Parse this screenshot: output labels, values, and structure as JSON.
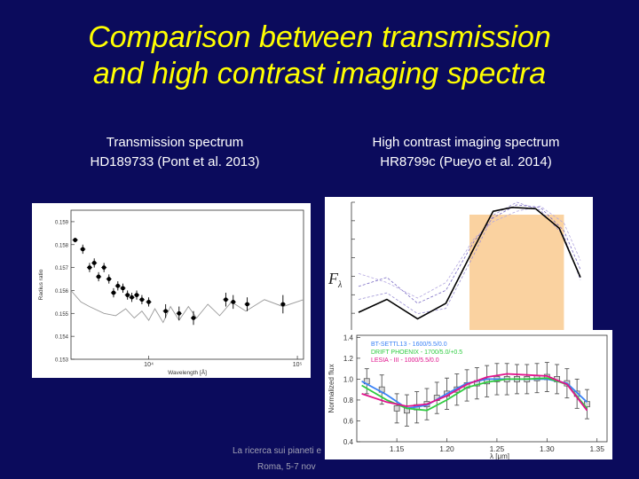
{
  "title": {
    "line1": "Comparison between transmission",
    "line2": "and high contrast imaging spectra"
  },
  "left_caption": {
    "line1": "Transmission spectrum",
    "line2": "HD189733 (Pont et al. 2013)"
  },
  "right_caption": {
    "line1": "High contrast imaging spectrum",
    "line2": "HR8799c (Pueyo et al. 2014)"
  },
  "footer": {
    "line1": "La ricerca sui pianeti e",
    "line2": "Roma, 5-7 nov"
  },
  "colors": {
    "background": "#0b0b5c",
    "title": "#ffff00",
    "shade": "#fad2a0",
    "bt_settl": "#3b82f6",
    "drift_phoenix": "#2ecc40",
    "lesia": "#e0138c"
  },
  "chart_data": [
    {
      "type": "scatter",
      "xlabel": "Wavelength [Å]",
      "ylabel": "Radius ratio",
      "x_scale": "log",
      "xlim": [
        3000,
        110000
      ],
      "ylim": [
        0.153,
        0.1595
      ],
      "yticks": [
        "0.159",
        "0.158",
        "0.157",
        "0.156",
        "0.155",
        "0.154",
        "0.153"
      ],
      "xticks": [
        {
          "value": 10000,
          "label": "10⁴"
        },
        {
          "value": 100000,
          "label": "10⁵"
        }
      ],
      "points": [
        {
          "x": 3200,
          "y": 0.1582,
          "err": 0.0001
        },
        {
          "x": 3600,
          "y": 0.1578,
          "err": 0.0002
        },
        {
          "x": 4000,
          "y": 0.157,
          "err": 0.0002
        },
        {
          "x": 4300,
          "y": 0.1572,
          "err": 0.0002
        },
        {
          "x": 4600,
          "y": 0.1566,
          "err": 0.0002
        },
        {
          "x": 5000,
          "y": 0.157,
          "err": 0.0002
        },
        {
          "x": 5400,
          "y": 0.1565,
          "err": 0.0002
        },
        {
          "x": 5800,
          "y": 0.1559,
          "err": 0.0002
        },
        {
          "x": 6200,
          "y": 0.1562,
          "err": 0.0002
        },
        {
          "x": 6700,
          "y": 0.1561,
          "err": 0.0002
        },
        {
          "x": 7200,
          "y": 0.1558,
          "err": 0.0002
        },
        {
          "x": 7700,
          "y": 0.1557,
          "err": 0.0002
        },
        {
          "x": 8300,
          "y": 0.1558,
          "err": 0.0002
        },
        {
          "x": 9000,
          "y": 0.1556,
          "err": 0.0002
        },
        {
          "x": 10000,
          "y": 0.1555,
          "err": 0.0002
        },
        {
          "x": 13000,
          "y": 0.1551,
          "err": 0.0003
        },
        {
          "x": 16000,
          "y": 0.155,
          "err": 0.0003
        },
        {
          "x": 20000,
          "y": 0.1548,
          "err": 0.0003
        },
        {
          "x": 33000,
          "y": 0.1556,
          "err": 0.0003
        },
        {
          "x": 37000,
          "y": 0.1555,
          "err": 0.0003
        },
        {
          "x": 46000,
          "y": 0.1554,
          "err": 0.0003
        },
        {
          "x": 80000,
          "y": 0.1554,
          "err": 0.0004
        }
      ],
      "model": [
        {
          "x": 3000,
          "y": 0.156
        },
        {
          "x": 3500,
          "y": 0.1555
        },
        {
          "x": 4000,
          "y": 0.1553
        },
        {
          "x": 5000,
          "y": 0.155
        },
        {
          "x": 6000,
          "y": 0.1549
        },
        {
          "x": 7000,
          "y": 0.1552
        },
        {
          "x": 8000,
          "y": 0.1548
        },
        {
          "x": 9000,
          "y": 0.1551
        },
        {
          "x": 10000,
          "y": 0.1547
        },
        {
          "x": 11000,
          "y": 0.1552
        },
        {
          "x": 12500,
          "y": 0.1546
        },
        {
          "x": 14000,
          "y": 0.1553
        },
        {
          "x": 16000,
          "y": 0.1547
        },
        {
          "x": 18500,
          "y": 0.1553
        },
        {
          "x": 21000,
          "y": 0.1548
        },
        {
          "x": 25000,
          "y": 0.1554
        },
        {
          "x": 30000,
          "y": 0.1549
        },
        {
          "x": 36000,
          "y": 0.1555
        },
        {
          "x": 45000,
          "y": 0.1551
        },
        {
          "x": 60000,
          "y": 0.1556
        },
        {
          "x": 80000,
          "y": 0.1553
        },
        {
          "x": 110000,
          "y": 0.1556
        }
      ]
    },
    {
      "type": "line",
      "ylabel": "Fλ",
      "xlim": [
        0,
        100
      ],
      "ylim": [
        0,
        100
      ],
      "shaded_x": [
        50,
        90
      ],
      "observed": [
        {
          "x": 3,
          "y": 15
        },
        {
          "x": 15,
          "y": 25
        },
        {
          "x": 28,
          "y": 10
        },
        {
          "x": 40,
          "y": 22
        },
        {
          "x": 52,
          "y": 65
        },
        {
          "x": 60,
          "y": 93
        },
        {
          "x": 68,
          "y": 96
        },
        {
          "x": 78,
          "y": 95
        },
        {
          "x": 88,
          "y": 80
        },
        {
          "x": 97,
          "y": 42
        }
      ],
      "models_dashed": [
        [
          {
            "x": 3,
            "y": 35
          },
          {
            "x": 15,
            "y": 42
          },
          {
            "x": 28,
            "y": 22
          },
          {
            "x": 40,
            "y": 32
          },
          {
            "x": 52,
            "y": 70
          },
          {
            "x": 60,
            "y": 88
          },
          {
            "x": 70,
            "y": 98
          },
          {
            "x": 80,
            "y": 96
          },
          {
            "x": 90,
            "y": 78
          },
          {
            "x": 97,
            "y": 48
          }
        ],
        [
          {
            "x": 3,
            "y": 25
          },
          {
            "x": 15,
            "y": 30
          },
          {
            "x": 28,
            "y": 14
          },
          {
            "x": 40,
            "y": 18
          },
          {
            "x": 52,
            "y": 60
          },
          {
            "x": 60,
            "y": 90
          },
          {
            "x": 70,
            "y": 100
          },
          {
            "x": 80,
            "y": 94
          },
          {
            "x": 90,
            "y": 74
          },
          {
            "x": 97,
            "y": 40
          }
        ],
        [
          {
            "x": 3,
            "y": 45
          },
          {
            "x": 15,
            "y": 38
          },
          {
            "x": 28,
            "y": 26
          },
          {
            "x": 40,
            "y": 38
          },
          {
            "x": 52,
            "y": 72
          },
          {
            "x": 60,
            "y": 85
          },
          {
            "x": 70,
            "y": 93
          },
          {
            "x": 80,
            "y": 97
          },
          {
            "x": 90,
            "y": 84
          },
          {
            "x": 97,
            "y": 55
          }
        ]
      ]
    },
    {
      "type": "line",
      "xlabel": "λ [μm]",
      "ylabel": "Normalized flux",
      "xlim": [
        1.11,
        1.36
      ],
      "ylim": [
        0.4,
        1.42
      ],
      "xticks": [
        "1.15",
        "1.20",
        "1.25",
        "1.30",
        "1.35"
      ],
      "yticks": [
        "1.4",
        "1.2",
        "1.0",
        "0.8",
        "0.6",
        "0.4"
      ],
      "series": [
        {
          "name": "BT-SETTL13 - 1600/5.5/0.0",
          "color": "#3b82f6",
          "values": [
            {
              "x": 1.115,
              "y": 0.98
            },
            {
              "x": 1.14,
              "y": 0.85
            },
            {
              "x": 1.16,
              "y": 0.72
            },
            {
              "x": 1.18,
              "y": 0.75
            },
            {
              "x": 1.2,
              "y": 0.86
            },
            {
              "x": 1.22,
              "y": 0.96
            },
            {
              "x": 1.24,
              "y": 1.0
            },
            {
              "x": 1.26,
              "y": 1.0
            },
            {
              "x": 1.28,
              "y": 1.0
            },
            {
              "x": 1.3,
              "y": 1.0
            },
            {
              "x": 1.32,
              "y": 0.96
            },
            {
              "x": 1.34,
              "y": 0.78
            }
          ]
        },
        {
          "name": "DRIFT PHOENIX - 1700/5.0/+0.5",
          "color": "#2ecc40",
          "values": [
            {
              "x": 1.115,
              "y": 0.94
            },
            {
              "x": 1.14,
              "y": 0.8
            },
            {
              "x": 1.16,
              "y": 0.72
            },
            {
              "x": 1.18,
              "y": 0.7
            },
            {
              "x": 1.2,
              "y": 0.8
            },
            {
              "x": 1.22,
              "y": 0.92
            },
            {
              "x": 1.24,
              "y": 0.97
            },
            {
              "x": 1.26,
              "y": 1.0
            },
            {
              "x": 1.28,
              "y": 1.0
            },
            {
              "x": 1.3,
              "y": 1.01
            },
            {
              "x": 1.32,
              "y": 0.95
            },
            {
              "x": 1.34,
              "y": 0.72
            }
          ]
        },
        {
          "name": "LESIA - III - 1000/5.5/0.0",
          "color": "#e0138c",
          "values": [
            {
              "x": 1.115,
              "y": 0.86
            },
            {
              "x": 1.14,
              "y": 0.78
            },
            {
              "x": 1.16,
              "y": 0.74
            },
            {
              "x": 1.18,
              "y": 0.76
            },
            {
              "x": 1.2,
              "y": 0.84
            },
            {
              "x": 1.22,
              "y": 0.95
            },
            {
              "x": 1.24,
              "y": 1.02
            },
            {
              "x": 1.26,
              "y": 1.05
            },
            {
              "x": 1.28,
              "y": 1.04
            },
            {
              "x": 1.3,
              "y": 1.03
            },
            {
              "x": 1.32,
              "y": 0.95
            },
            {
              "x": 1.34,
              "y": 0.7
            }
          ]
        }
      ],
      "data_points": [
        {
          "x": 1.12,
          "y": 0.98,
          "err": 0.12
        },
        {
          "x": 1.135,
          "y": 0.9,
          "err": 0.14
        },
        {
          "x": 1.15,
          "y": 0.72,
          "err": 0.14
        },
        {
          "x": 1.16,
          "y": 0.7,
          "err": 0.15
        },
        {
          "x": 1.17,
          "y": 0.73,
          "err": 0.15
        },
        {
          "x": 1.18,
          "y": 0.76,
          "err": 0.15
        },
        {
          "x": 1.19,
          "y": 0.82,
          "err": 0.15
        },
        {
          "x": 1.2,
          "y": 0.86,
          "err": 0.15
        },
        {
          "x": 1.21,
          "y": 0.9,
          "err": 0.15
        },
        {
          "x": 1.22,
          "y": 0.94,
          "err": 0.15
        },
        {
          "x": 1.23,
          "y": 0.96,
          "err": 0.15
        },
        {
          "x": 1.24,
          "y": 0.98,
          "err": 0.15
        },
        {
          "x": 1.25,
          "y": 1.0,
          "err": 0.15
        },
        {
          "x": 1.26,
          "y": 1.0,
          "err": 0.15
        },
        {
          "x": 1.27,
          "y": 1.0,
          "err": 0.14
        },
        {
          "x": 1.28,
          "y": 1.0,
          "err": 0.14
        },
        {
          "x": 1.29,
          "y": 1.01,
          "err": 0.14
        },
        {
          "x": 1.3,
          "y": 1.02,
          "err": 0.14
        },
        {
          "x": 1.31,
          "y": 1.0,
          "err": 0.14
        },
        {
          "x": 1.32,
          "y": 0.96,
          "err": 0.14
        },
        {
          "x": 1.33,
          "y": 0.86,
          "err": 0.14
        },
        {
          "x": 1.34,
          "y": 0.76,
          "err": 0.14
        }
      ]
    }
  ]
}
